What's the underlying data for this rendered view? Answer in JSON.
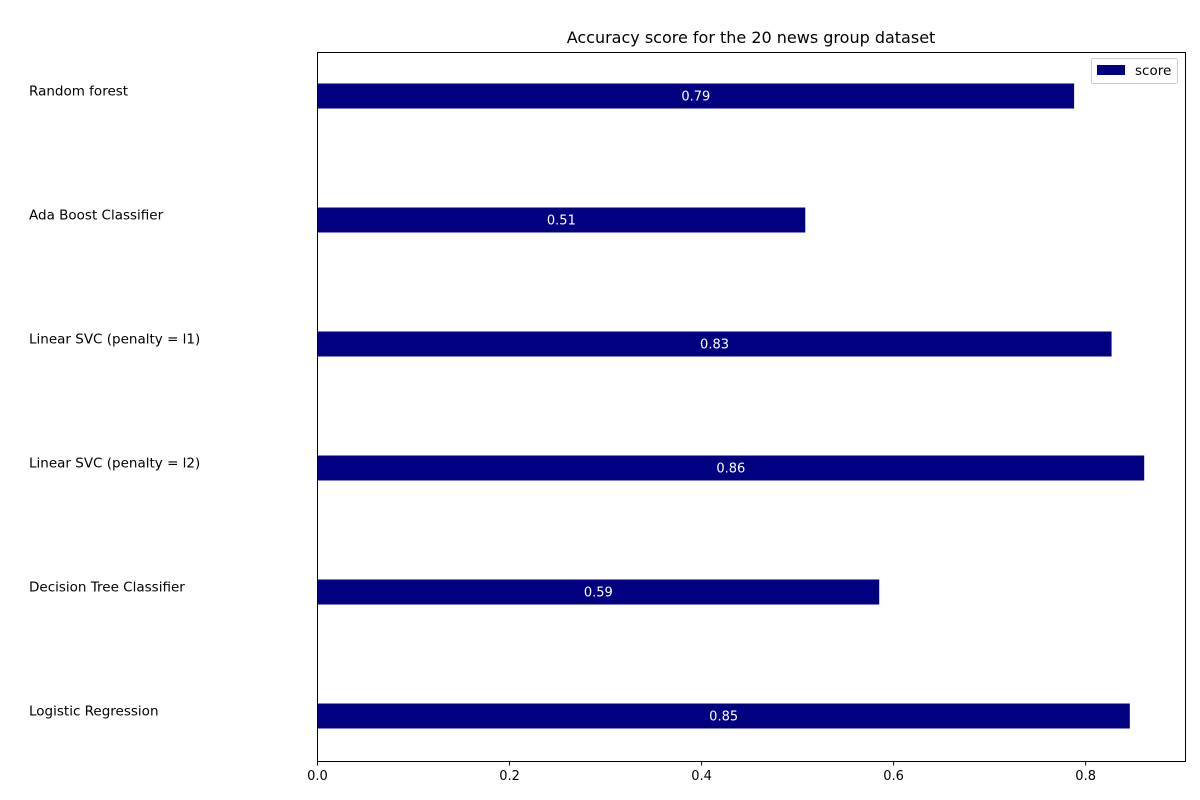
{
  "chart_data": {
    "type": "bar",
    "orientation": "horizontal",
    "title": "Accuracy score for the 20 news group dataset",
    "xlabel": "",
    "ylabel": "",
    "categories": [
      "Random forest",
      "Ada Boost Classifier",
      "Linear SVC (penalty = l1)",
      "Linear SVC (penalty = l2)",
      "Decision Tree Classifier",
      "Logistic Regression"
    ],
    "series": [
      {
        "name": "score",
        "values": [
          0.788,
          0.508,
          0.827,
          0.861,
          0.585,
          0.846
        ],
        "labels": [
          "0.79",
          "0.51",
          "0.83",
          "0.86",
          "0.59",
          "0.85"
        ]
      }
    ],
    "xlim": [
      0,
      0.904
    ],
    "xticks": [
      0.0,
      0.2,
      0.4,
      0.6,
      0.8
    ],
    "xtick_labels": [
      "0.0",
      "0.2",
      "0.4",
      "0.6",
      "0.8"
    ],
    "grid": false,
    "legend_position": "top-right",
    "bar_color": "#000080",
    "bar_label_color": "#ffffff"
  }
}
